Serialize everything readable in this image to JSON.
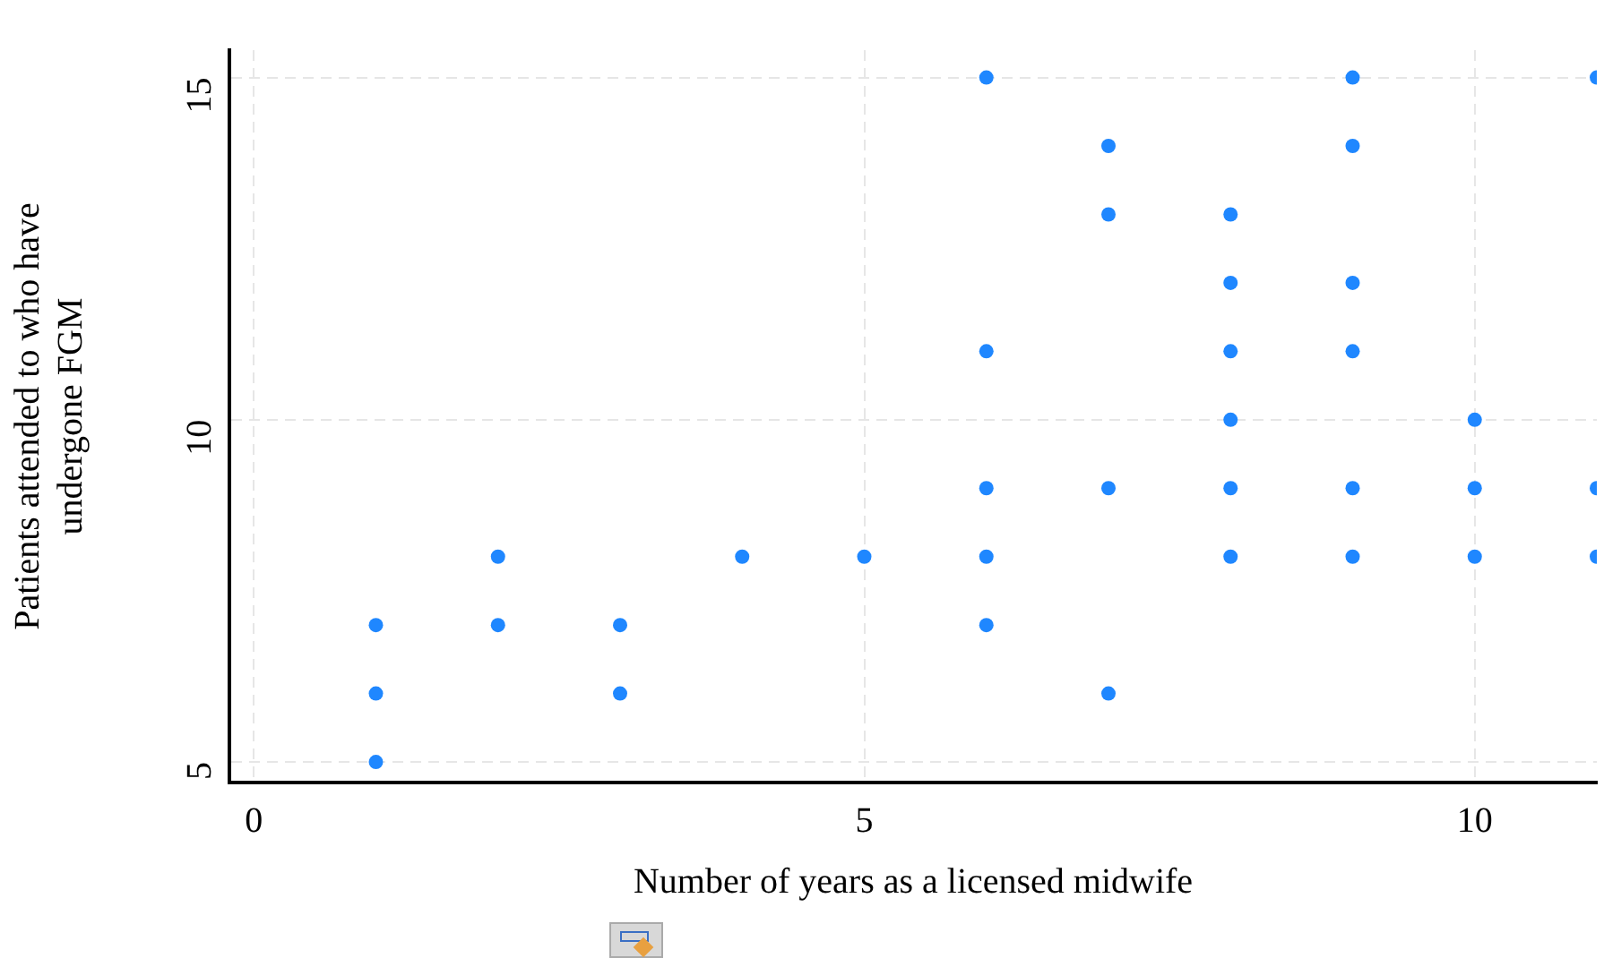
{
  "chart_data": {
    "type": "scatter",
    "xlabel": "Number of years as a licensed midwife",
    "ylabel": "Patients attended to who have undergone FGM",
    "x": [
      1,
      1,
      1,
      2,
      2,
      3,
      3,
      4,
      5,
      6,
      6,
      6,
      6,
      6,
      7,
      7,
      7,
      7,
      8,
      8,
      8,
      8,
      8,
      8,
      9,
      9,
      9,
      9,
      9,
      9,
      10,
      10,
      10,
      11,
      11,
      11
    ],
    "values": [
      5,
      6,
      7,
      7,
      8,
      6,
      7,
      8,
      8,
      7,
      8,
      9,
      11,
      15,
      6,
      9,
      13,
      14,
      8,
      9,
      10,
      11,
      12,
      13,
      8,
      9,
      11,
      12,
      14,
      15,
      8,
      9,
      10,
      8,
      9,
      15
    ],
    "color": "#1f87ff",
    "marker": "circle",
    "xlim": [
      -0.2,
      11
    ],
    "xticks": [
      0,
      5,
      10
    ],
    "ylim": [
      4.7,
      15.4
    ],
    "yticks": [
      5,
      10,
      15
    ],
    "grid": true,
    "legend": false
  }
}
